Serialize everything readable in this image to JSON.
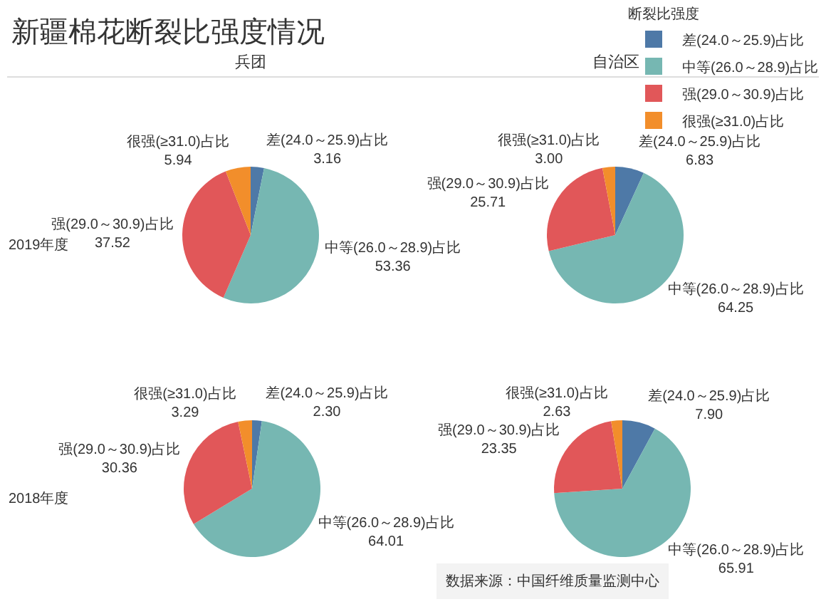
{
  "chart_data": [
    {
      "type": "pie",
      "title": "新疆棉花断裂比强度情况",
      "legend_title": "断裂比强度",
      "legend": "top right",
      "annotations": [
        "兵团",
        "2019年度"
      ],
      "categories": [
        "差(24.0～25.9)占比",
        "中等(26.0～28.9)占比",
        "强(29.0～30.9)占比",
        "很强(≥31.0)占比"
      ],
      "values": [
        3.16,
        53.36,
        37.52,
        5.94
      ],
      "value_labels": [
        "3.16",
        "53.36",
        "37.52",
        "5.94"
      ],
      "colors": [
        "#4e79a7",
        "#76b7b2",
        "#e15759",
        "#f28e2b"
      ]
    },
    {
      "type": "pie",
      "annotations": [
        "自治区"
      ],
      "categories": [
        "差(24.0～25.9)占比",
        "中等(26.0～28.9)占比",
        "强(29.0～30.9)占比",
        "很强(≥31.0)占比"
      ],
      "values": [
        6.83,
        64.25,
        25.71,
        3.0
      ],
      "value_labels": [
        "6.83",
        "64.25",
        "25.71",
        "3.00"
      ],
      "colors": [
        "#4e79a7",
        "#76b7b2",
        "#e15759",
        "#f28e2b"
      ]
    },
    {
      "type": "pie",
      "annotations": [
        "2018年度"
      ],
      "categories": [
        "差(24.0～25.9)占比",
        "中等(26.0～28.9)占比",
        "强(29.0～30.9)占比",
        "很强(≥31.0)占比"
      ],
      "values": [
        2.3,
        64.01,
        30.36,
        3.29
      ],
      "value_labels": [
        "2.30",
        "64.01",
        "30.36",
        "3.29"
      ],
      "colors": [
        "#4e79a7",
        "#76b7b2",
        "#e15759",
        "#f28e2b"
      ]
    },
    {
      "type": "pie",
      "annotations": [
        "数据来源：中国纤维质量监测中心"
      ],
      "categories": [
        "差(24.0～25.9)占比",
        "中等(26.0～28.9)占比",
        "强(29.0～30.9)占比",
        "很强(≥31.0)占比"
      ],
      "values": [
        7.9,
        65.91,
        23.35,
        2.63
      ],
      "value_labels": [
        "7.90",
        "65.91",
        "23.35",
        "2.63"
      ],
      "colors": [
        "#4e79a7",
        "#76b7b2",
        "#e15759",
        "#f28e2b"
      ]
    }
  ]
}
